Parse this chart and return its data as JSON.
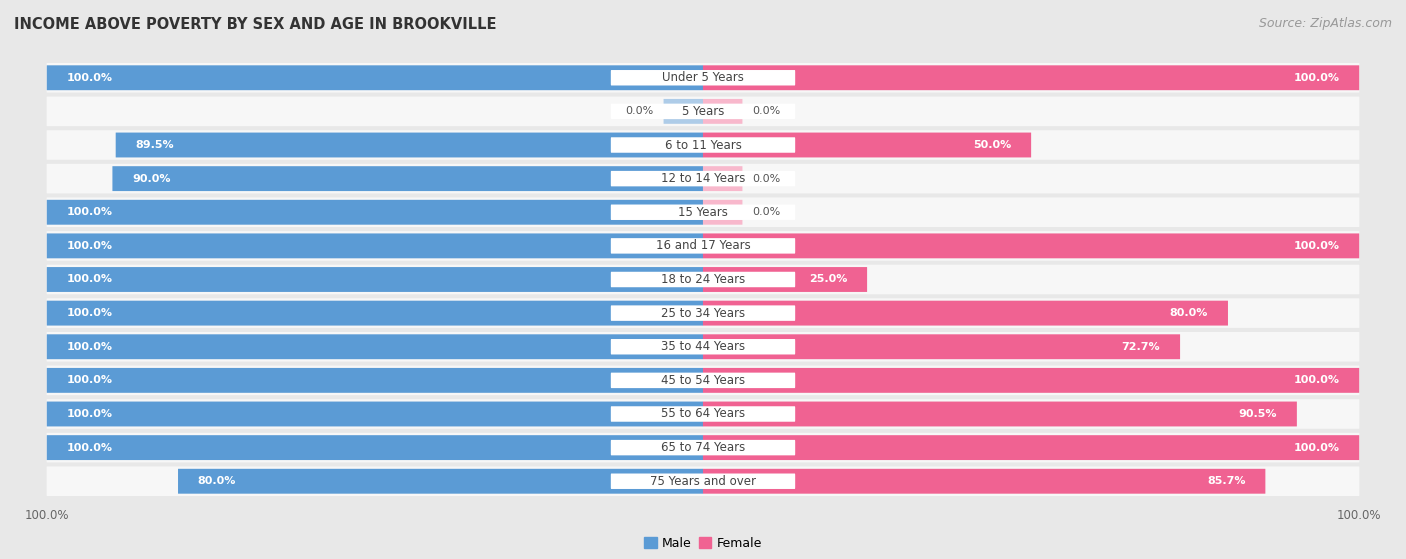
{
  "title": "INCOME ABOVE POVERTY BY SEX AND AGE IN BROOKVILLE",
  "source": "Source: ZipAtlas.com",
  "categories": [
    "Under 5 Years",
    "5 Years",
    "6 to 11 Years",
    "12 to 14 Years",
    "15 Years",
    "16 and 17 Years",
    "18 to 24 Years",
    "25 to 34 Years",
    "35 to 44 Years",
    "45 to 54 Years",
    "55 to 64 Years",
    "65 to 74 Years",
    "75 Years and over"
  ],
  "male": [
    100.0,
    0.0,
    89.5,
    90.0,
    100.0,
    100.0,
    100.0,
    100.0,
    100.0,
    100.0,
    100.0,
    100.0,
    80.0
  ],
  "female": [
    100.0,
    0.0,
    50.0,
    0.0,
    0.0,
    100.0,
    25.0,
    80.0,
    72.7,
    100.0,
    90.5,
    100.0,
    85.7
  ],
  "male_color": "#5b9bd5",
  "female_color": "#f06292",
  "male_color_zero": "#aecce8",
  "female_color_zero": "#f8b8cc",
  "bg_color": "#e8e8e8",
  "row_bg_color": "#f7f7f7",
  "label_pill_color": "#ffffff",
  "title_fontsize": 10.5,
  "label_fontsize": 8.5,
  "value_fontsize": 8.0,
  "tick_fontsize": 8.5,
  "source_fontsize": 9,
  "legend_fontsize": 9
}
